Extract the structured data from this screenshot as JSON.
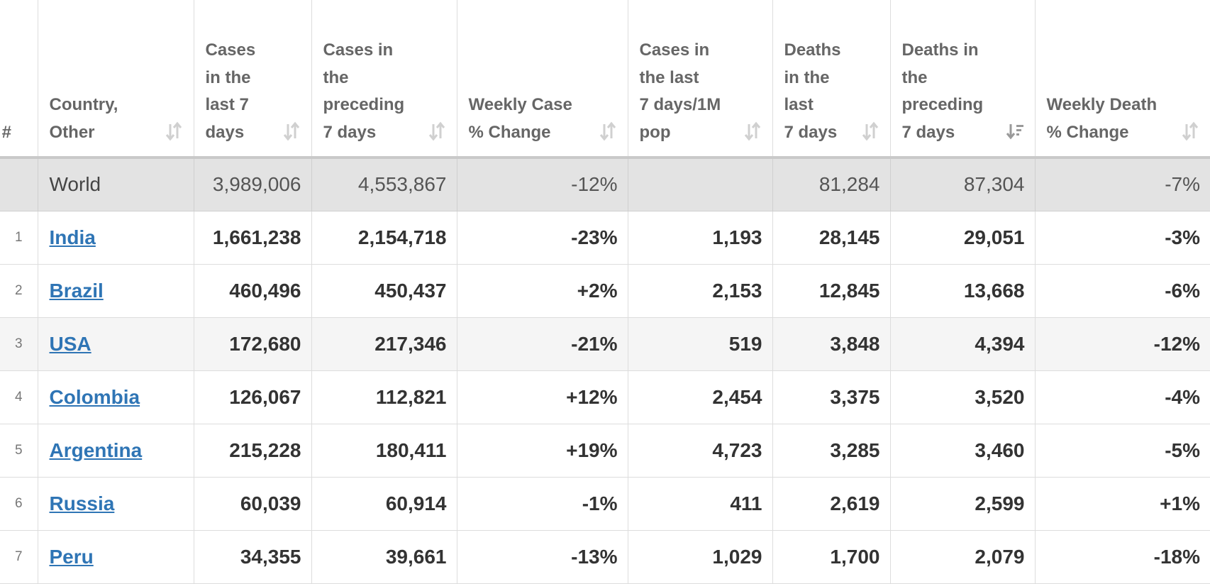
{
  "headers": [
    {
      "label": "#",
      "sort": "none"
    },
    {
      "label": "Country, Other",
      "sort": "both"
    },
    {
      "label": "Cases in the last 7 days",
      "sort": "both"
    },
    {
      "label": "Cases in the preceding 7 days",
      "sort": "both"
    },
    {
      "label": "Weekly Case % Change",
      "sort": "both"
    },
    {
      "label": "Cases in the last 7 days/1M pop",
      "sort": "both"
    },
    {
      "label": "Deaths in the last 7 days",
      "sort": "both"
    },
    {
      "label": "Deaths in the preceding 7 days",
      "sort": "desc"
    },
    {
      "label": "Weekly Death % Change",
      "sort": "both"
    }
  ],
  "header_lines": [
    [
      "#"
    ],
    [
      "Country,",
      "Other"
    ],
    [
      "Cases",
      "in the",
      "last 7",
      "days"
    ],
    [
      "Cases in",
      "the",
      "preceding",
      "7 days"
    ],
    [
      "Weekly Case",
      "% Change"
    ],
    [
      "Cases in",
      "the last",
      "7 days/1M",
      "pop"
    ],
    [
      "Deaths",
      "in the",
      "last",
      "7 days"
    ],
    [
      "Deaths in",
      "the",
      "preceding",
      "7 days"
    ],
    [
      "Weekly Death",
      "% Change"
    ]
  ],
  "world": {
    "rank": "",
    "country": "World",
    "cases_7d": "3,989,006",
    "cases_prev_7d": "4,553,867",
    "case_change": "-12%",
    "cases_per_1m": "",
    "deaths_7d": "81,284",
    "deaths_prev_7d": "87,304",
    "death_change": "-7%"
  },
  "rows": [
    {
      "rank": "1",
      "country": "India",
      "cases_7d": "1,661,238",
      "cases_prev_7d": "2,154,718",
      "case_change": "-23%",
      "cases_per_1m": "1,193",
      "deaths_7d": "28,145",
      "deaths_prev_7d": "29,051",
      "death_change": "-3%"
    },
    {
      "rank": "2",
      "country": "Brazil",
      "cases_7d": "460,496",
      "cases_prev_7d": "450,437",
      "case_change": "+2%",
      "cases_per_1m": "2,153",
      "deaths_7d": "12,845",
      "deaths_prev_7d": "13,668",
      "death_change": "-6%"
    },
    {
      "rank": "3",
      "country": "USA",
      "cases_7d": "172,680",
      "cases_prev_7d": "217,346",
      "case_change": "-21%",
      "cases_per_1m": "519",
      "deaths_7d": "3,848",
      "deaths_prev_7d": "4,394",
      "death_change": "-12%"
    },
    {
      "rank": "4",
      "country": "Colombia",
      "cases_7d": "126,067",
      "cases_prev_7d": "112,821",
      "case_change": "+12%",
      "cases_per_1m": "2,454",
      "deaths_7d": "3,375",
      "deaths_prev_7d": "3,520",
      "death_change": "-4%"
    },
    {
      "rank": "5",
      "country": "Argentina",
      "cases_7d": "215,228",
      "cases_prev_7d": "180,411",
      "case_change": "+19%",
      "cases_per_1m": "4,723",
      "deaths_7d": "3,285",
      "deaths_prev_7d": "3,460",
      "death_change": "-5%"
    },
    {
      "rank": "6",
      "country": "Russia",
      "cases_7d": "60,039",
      "cases_prev_7d": "60,914",
      "case_change": "-1%",
      "cases_per_1m": "411",
      "deaths_7d": "2,619",
      "deaths_prev_7d": "2,599",
      "death_change": "+1%"
    },
    {
      "rank": "7",
      "country": "Peru",
      "cases_7d": "34,355",
      "cases_prev_7d": "39,661",
      "case_change": "-13%",
      "cases_per_1m": "1,029",
      "deaths_7d": "1,700",
      "deaths_prev_7d": "2,079",
      "death_change": "-18%"
    }
  ],
  "colors": {
    "link": "#2f75b5",
    "world_bg": "#e3e3e3",
    "alt_row_bg": "#f5f5f5",
    "header_text": "#666666"
  }
}
